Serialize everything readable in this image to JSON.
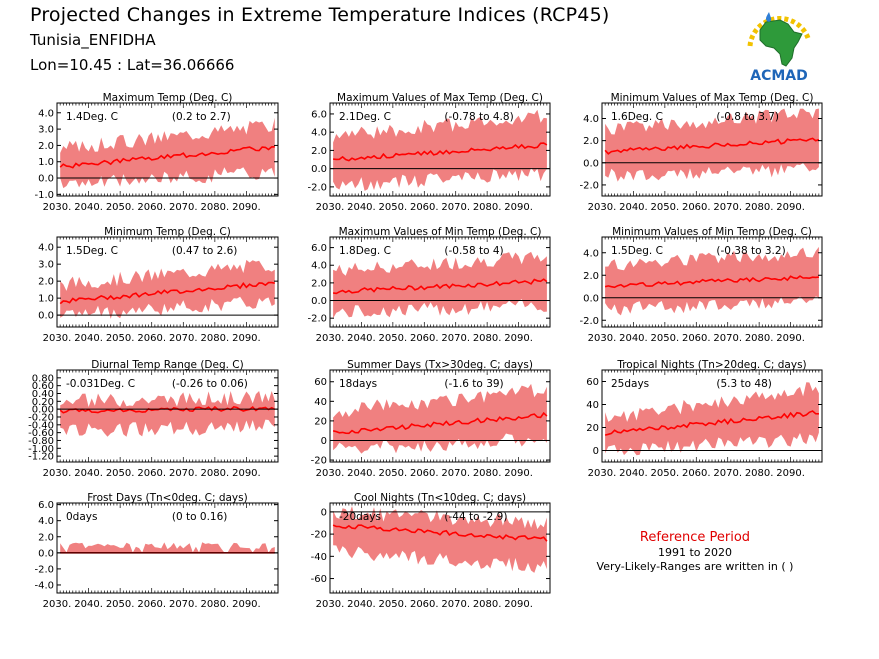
{
  "header": {
    "title": "Projected Changes in Extreme Temperature Indices (RCP45)",
    "station": "Tunisia_ENFIDHA",
    "coordinates": "Lon=10.45 : Lat=36.06666"
  },
  "logo": {
    "text": "ACMAD",
    "icon": "acmad-africa-logo"
  },
  "reference": {
    "title": "Reference Period",
    "years": "1991 to 2020",
    "note": "Very-Likely-Ranges are written in ( )"
  },
  "colors": {
    "band": "#f08080",
    "line": "#ff0000",
    "zero": "#000000"
  },
  "x_ticks": [
    "2030.",
    "2040.",
    "2050.",
    "2060.",
    "2070.",
    "2080.",
    "2090."
  ],
  "chart_data": [
    {
      "type": "area",
      "title": "Maximum Temp (Deg. C)",
      "change": "1.4Deg. C",
      "range": "(0.2 to 2.7)",
      "x": [
        2030,
        2100
      ],
      "ylim": [
        -1.1,
        4.6
      ],
      "yticks": [
        "4.0",
        "3.0",
        "2.0",
        "1.0",
        "0.0",
        "-1.0"
      ],
      "ytick_values": [
        4,
        3,
        2,
        1,
        0,
        -1
      ],
      "series": [
        {
          "values_start": 0.7,
          "values_end": 1.9,
          "band_low_start": -0.4,
          "band_low_end": 0.4,
          "band_high_start": 1.8,
          "band_high_end": 3.3
        }
      ]
    },
    {
      "type": "area",
      "title": "Maximum Values of Max Temp (Deg. C)",
      "change": "2.1Deg. C",
      "range": "(-0.78 to 4.8)",
      "x": [
        2030,
        2100
      ],
      "ylim": [
        -3.0,
        7.2
      ],
      "yticks": [
        "6.0",
        "4.0",
        "2.0",
        "0.0",
        "-2.0"
      ],
      "ytick_values": [
        6,
        4,
        2,
        0,
        -2
      ],
      "series": [
        {
          "values_start": 1.0,
          "values_end": 2.6,
          "band_low_start": -1.8,
          "band_low_end": -0.6,
          "band_high_start": 3.6,
          "band_high_end": 5.8
        }
      ]
    },
    {
      "type": "area",
      "title": "Minimum Values of Max Temp (Deg. C)",
      "change": "1.6Deg. C",
      "range": "(-0.8 to 3.7)",
      "x": [
        2030,
        2100
      ],
      "ylim": [
        -3.0,
        5.4
      ],
      "yticks": [
        "4.0",
        "2.0",
        "0.0",
        "-2.0"
      ],
      "ytick_values": [
        4,
        2,
        0,
        -2
      ],
      "series": [
        {
          "values_start": 1.0,
          "values_end": 2.1,
          "band_low_start": -1.2,
          "band_low_end": -0.5,
          "band_high_start": 3.0,
          "band_high_end": 4.6
        }
      ]
    },
    {
      "type": "area",
      "title": "Minimum Temp (Deg. C)",
      "change": "1.5Deg. C",
      "range": "(0.47 to 2.6)",
      "x": [
        2030,
        2100
      ],
      "ylim": [
        -0.7,
        4.6
      ],
      "yticks": [
        "4.0",
        "3.0",
        "2.0",
        "1.0",
        "0.0"
      ],
      "ytick_values": [
        4,
        3,
        2,
        1,
        0
      ],
      "series": [
        {
          "values_start": 0.8,
          "values_end": 1.9,
          "band_low_start": 0.0,
          "band_low_end": 0.8,
          "band_high_start": 1.8,
          "band_high_end": 3.0
        }
      ]
    },
    {
      "type": "area",
      "title": "Maximum Values of Min Temp (Deg. C)",
      "change": "1.8Deg. C",
      "range": "(-0.58 to 4)",
      "x": [
        2030,
        2100
      ],
      "ylim": [
        -3.0,
        7.2
      ],
      "yticks": [
        "6.0",
        "4.0",
        "2.0",
        "0.0",
        "-2.0"
      ],
      "ytick_values": [
        6,
        4,
        2,
        0,
        -2
      ],
      "series": [
        {
          "values_start": 1.0,
          "values_end": 2.2,
          "band_low_start": -1.4,
          "band_low_end": -0.5,
          "band_high_start": 3.4,
          "band_high_end": 5.0
        }
      ]
    },
    {
      "type": "area",
      "title": "Minimum Values of Min Temp (Deg. C)",
      "change": "1.5Deg. C",
      "range": "(-0.38 to 3.2)",
      "x": [
        2030,
        2100
      ],
      "ylim": [
        -2.6,
        5.4
      ],
      "yticks": [
        "4.0",
        "2.0",
        "0.0",
        "-2.0"
      ],
      "ytick_values": [
        4,
        2,
        0,
        -2
      ],
      "series": [
        {
          "values_start": 1.0,
          "values_end": 1.9,
          "band_low_start": -1.0,
          "band_low_end": -0.3,
          "band_high_start": 2.9,
          "band_high_end": 4.0
        }
      ]
    },
    {
      "type": "area",
      "title": "Diurnal Temp Range (Deg. C)",
      "change": "-0.031Deg. C",
      "range": "(-0.26 to 0.06)",
      "x": [
        2030,
        2100
      ],
      "ylim": [
        -1.35,
        1.0
      ],
      "yticks": [
        "0.80",
        "0.60",
        "0.40",
        "0.20",
        "0.00",
        "-0.20",
        "-0.40",
        "-0.60",
        "-0.80",
        "-1.00",
        "-1.20"
      ],
      "ytick_values": [
        0.8,
        0.6,
        0.4,
        0.2,
        0,
        -0.2,
        -0.4,
        -0.6,
        -0.8,
        -1.0,
        -1.2
      ],
      "series": [
        {
          "values_start": -0.05,
          "values_end": 0.02,
          "band_low_start": -0.55,
          "band_low_end": -0.45,
          "band_high_start": 0.2,
          "band_high_end": 0.3
        }
      ]
    },
    {
      "type": "area",
      "title": "Summer Days (Tx>30deg. C; days)",
      "change": "18days",
      "range": "(-1.6 to 39)",
      "x": [
        2030,
        2100
      ],
      "ylim": [
        -22,
        72
      ],
      "yticks": [
        "60",
        "40",
        "20",
        "0",
        "-20"
      ],
      "ytick_values": [
        60,
        40,
        20,
        0,
        -20
      ],
      "series": [
        {
          "values_start": 8,
          "values_end": 26,
          "band_low_start": -10,
          "band_low_end": 2,
          "band_high_start": 30,
          "band_high_end": 52
        }
      ]
    },
    {
      "type": "area",
      "title": "Tropical Nights (Tn>20deg. C; days)",
      "change": "25days",
      "range": "(5.3 to 48)",
      "x": [
        2030,
        2100
      ],
      "ylim": [
        -10,
        70
      ],
      "yticks": [
        "60",
        "40",
        "20",
        "0"
      ],
      "ytick_values": [
        60,
        40,
        20,
        0
      ],
      "series": [
        {
          "values_start": 15,
          "values_end": 33,
          "band_low_start": 0,
          "band_low_end": 10,
          "band_high_start": 28,
          "band_high_end": 55
        }
      ]
    },
    {
      "type": "area",
      "title": "Frost Days (Tn<0deg. C; days)",
      "change": "0days",
      "range": "(0 to 0.16)",
      "x": [
        2030,
        2100
      ],
      "ylim": [
        -5,
        6.2
      ],
      "yticks": [
        "6.0",
        "4.0",
        "2.0",
        "0.0",
        "-2.0",
        "-4.0"
      ],
      "ytick_values": [
        6,
        4,
        2,
        0,
        -2,
        -4
      ],
      "series": [
        {
          "values_start": 0.0,
          "values_end": 0.0,
          "band_low_start": 0.0,
          "band_low_end": 0.0,
          "band_high_start": 0.2,
          "band_high_end": 0.2
        }
      ]
    },
    {
      "type": "area",
      "title": "Cool Nights (Tn<10deg. C; days)",
      "change": "-20days",
      "range": "(-44 to -2.9)",
      "x": [
        2030,
        2100
      ],
      "ylim": [
        -73,
        8
      ],
      "yticks": [
        "0",
        "-20",
        "-40",
        "-60"
      ],
      "ytick_values": [
        0,
        -20,
        -40,
        -60
      ],
      "series": [
        {
          "values_start": -12,
          "values_end": -25,
          "band_low_start": -35,
          "band_low_end": -50,
          "band_high_start": 0,
          "band_high_end": -10
        }
      ]
    }
  ]
}
